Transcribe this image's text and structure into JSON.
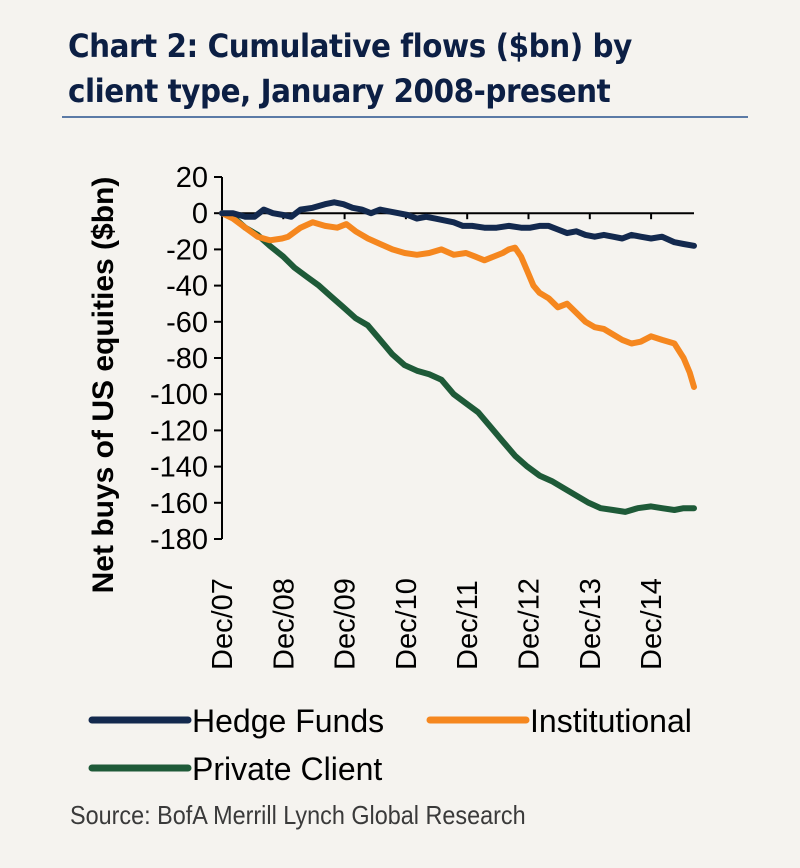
{
  "title": "Chart 2: Cumulative flows ($bn) by client type, January 2008-present",
  "source": "Source: BofA Merrill Lynch Global Research",
  "colors": {
    "hedge_funds": "#13294e",
    "institutional": "#f5871f",
    "private_client": "#1e5a38",
    "axis": "#000000",
    "rule": "#5b7aa6"
  },
  "chart_data": {
    "type": "line",
    "title": "Chart 2: Cumulative flows ($bn) by client type, January 2008-present",
    "xlabel": "",
    "ylabel": "Net buys of US equities ($bn)",
    "ylim": [
      -180,
      20
    ],
    "yticks": [
      20,
      0,
      -20,
      -40,
      -60,
      -80,
      -100,
      -120,
      -140,
      -160,
      -180
    ],
    "xlim": [
      2007.92,
      2015.62
    ],
    "xticks": [
      {
        "label": "Dec/07",
        "x": 2007.92
      },
      {
        "label": "Dec/08",
        "x": 2008.92
      },
      {
        "label": "Dec/09",
        "x": 2009.92
      },
      {
        "label": "Dec/10",
        "x": 2010.92
      },
      {
        "label": "Dec/11",
        "x": 2011.92
      },
      {
        "label": "Dec/12",
        "x": 2012.92
      },
      {
        "label": "Dec/13",
        "x": 2013.92
      },
      {
        "label": "Dec/14",
        "x": 2014.92
      }
    ],
    "legend": "bottom",
    "grid": false,
    "series": [
      {
        "name": "Hedge Funds",
        "color": "#13294e",
        "x": [
          2007.92,
          2008.1,
          2008.3,
          2008.45,
          2008.6,
          2008.75,
          2008.92,
          2009.05,
          2009.2,
          2009.4,
          2009.6,
          2009.75,
          2009.9,
          2010.05,
          2010.2,
          2010.35,
          2010.5,
          2010.65,
          2010.8,
          2010.95,
          2011.1,
          2011.25,
          2011.4,
          2011.55,
          2011.7,
          2011.85,
          2012.0,
          2012.2,
          2012.4,
          2012.6,
          2012.8,
          2012.95,
          2013.1,
          2013.25,
          2013.4,
          2013.55,
          2013.7,
          2013.85,
          2014.0,
          2014.15,
          2014.3,
          2014.45,
          2014.6,
          2014.75,
          2014.92,
          2015.1,
          2015.3,
          2015.45,
          2015.62
        ],
        "y": [
          0,
          0,
          -2,
          -2,
          2,
          0,
          -1,
          -2,
          2,
          3,
          5,
          6,
          5,
          3,
          2,
          0,
          2,
          1,
          0,
          -1,
          -3,
          -2,
          -3,
          -4,
          -5,
          -7,
          -7,
          -8,
          -8,
          -7,
          -8,
          -8,
          -7,
          -7,
          -9,
          -11,
          -10,
          -12,
          -13,
          -12,
          -13,
          -14,
          -12,
          -13,
          -14,
          -13,
          -16,
          -17,
          -18
        ]
      },
      {
        "name": "Institutional",
        "color": "#f5871f",
        "x": [
          2007.92,
          2008.1,
          2008.3,
          2008.5,
          2008.7,
          2008.9,
          2009.0,
          2009.2,
          2009.4,
          2009.6,
          2009.8,
          2009.95,
          2010.1,
          2010.3,
          2010.5,
          2010.7,
          2010.9,
          2011.1,
          2011.3,
          2011.5,
          2011.7,
          2011.9,
          2012.05,
          2012.2,
          2012.35,
          2012.5,
          2012.6,
          2012.7,
          2012.8,
          2012.9,
          2013.0,
          2013.1,
          2013.25,
          2013.4,
          2013.55,
          2013.7,
          2013.85,
          2014.0,
          2014.15,
          2014.3,
          2014.45,
          2014.6,
          2014.75,
          2014.92,
          2015.1,
          2015.3,
          2015.45,
          2015.55,
          2015.62
        ],
        "y": [
          0,
          -3,
          -8,
          -13,
          -15,
          -14,
          -13,
          -8,
          -5,
          -7,
          -8,
          -6,
          -10,
          -14,
          -17,
          -20,
          -22,
          -23,
          -22,
          -20,
          -23,
          -22,
          -24,
          -26,
          -24,
          -22,
          -20,
          -19,
          -24,
          -32,
          -40,
          -44,
          -47,
          -52,
          -50,
          -55,
          -60,
          -63,
          -64,
          -67,
          -70,
          -72,
          -71,
          -68,
          -70,
          -72,
          -80,
          -88,
          -96
        ]
      },
      {
        "name": "Private Client",
        "color": "#1e5a38",
        "x": [
          2007.92,
          2008.1,
          2008.3,
          2008.5,
          2008.7,
          2008.92,
          2009.1,
          2009.3,
          2009.5,
          2009.7,
          2009.9,
          2010.1,
          2010.3,
          2010.5,
          2010.7,
          2010.9,
          2011.1,
          2011.3,
          2011.5,
          2011.7,
          2011.9,
          2012.1,
          2012.3,
          2012.5,
          2012.7,
          2012.9,
          2013.1,
          2013.3,
          2013.5,
          2013.7,
          2013.9,
          2014.1,
          2014.3,
          2014.5,
          2014.7,
          2014.92,
          2015.1,
          2015.3,
          2015.45,
          2015.62
        ],
        "y": [
          0,
          -2,
          -8,
          -12,
          -18,
          -24,
          -30,
          -35,
          -40,
          -46,
          -52,
          -58,
          -62,
          -70,
          -78,
          -84,
          -87,
          -89,
          -92,
          -100,
          -105,
          -110,
          -118,
          -126,
          -134,
          -140,
          -145,
          -148,
          -152,
          -156,
          -160,
          -163,
          -164,
          -165,
          -163,
          -162,
          -163,
          -164,
          -163,
          -163
        ]
      }
    ]
  }
}
